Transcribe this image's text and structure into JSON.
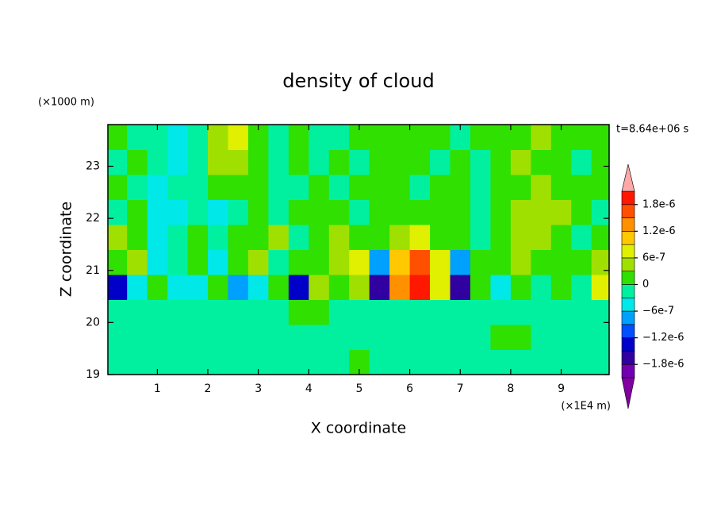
{
  "chart_data": {
    "type": "heatmap",
    "title": "density of cloud",
    "y_unit": "(×1000 m)",
    "time_label": "t=8.64e+06 s",
    "xlabel": "X coordinate",
    "ylabel": "Z coordinate",
    "x_unit": "(×1E4 m)",
    "xlim": [
      0.02,
      9.95
    ],
    "ylim": [
      19,
      23.8
    ],
    "xticks": [
      1,
      2,
      3,
      4,
      5,
      6,
      7,
      8,
      9
    ],
    "yticks": [
      19,
      20,
      21,
      22,
      23
    ],
    "x": [
      0.2,
      0.6,
      1.0,
      1.4,
      1.8,
      2.2,
      2.6,
      3.0,
      3.4,
      3.8,
      4.2,
      4.6,
      5.0,
      5.4,
      5.8,
      6.2,
      6.6,
      7.0,
      7.4,
      7.8,
      8.2,
      8.6,
      9.0,
      9.4,
      9.8
    ],
    "y": [
      19.24,
      19.72,
      20.2,
      20.68,
      21.16,
      21.64,
      22.12,
      22.6,
      23.08,
      23.56
    ],
    "z": [
      [
        -1e-07,
        -1e-07,
        -1e-07,
        -1e-07,
        -1e-07,
        -1e-07,
        -1e-07,
        -1e-07,
        -1e-07,
        -1e-07,
        -1e-07,
        -1e-07,
        1e-07,
        -1e-07,
        -1e-07,
        -1e-07,
        -1e-07,
        -1e-07,
        -1e-07,
        -1e-07,
        -1e-07,
        -1e-07,
        -1e-07,
        -1e-07,
        -1e-07
      ],
      [
        -1e-07,
        -1e-07,
        -1e-07,
        -1e-07,
        -1e-07,
        -1e-07,
        -1e-07,
        -1e-07,
        -1e-07,
        -1e-07,
        -1e-07,
        -1e-07,
        -1e-07,
        -1e-07,
        -1e-07,
        -1e-07,
        -1e-07,
        -1e-07,
        -1e-07,
        1e-07,
        1e-07,
        -1e-07,
        -1e-07,
        -1e-07,
        -1e-07
      ],
      [
        -1e-07,
        -1e-07,
        -1e-07,
        -1e-07,
        -1e-07,
        -1e-07,
        -1e-07,
        -1e-07,
        -1e-07,
        1e-07,
        2e-07,
        -1e-07,
        -1e-07,
        -1e-07,
        -1e-07,
        -1e-07,
        -1e-07,
        -1e-07,
        -1e-07,
        -1e-07,
        -1e-07,
        -1e-07,
        -1e-07,
        -1e-07,
        -1e-07
      ],
      [
        -1.5e-06,
        -4e-07,
        1e-07,
        -4e-07,
        -4e-07,
        1e-07,
        -7e-07,
        -4e-07,
        1e-07,
        -1.3e-06,
        4e-07,
        2e-07,
        4e-07,
        -1.6e-06,
        1.2e-06,
        1.9e-06,
        7e-07,
        -1.6e-06,
        1e-07,
        -4e-07,
        1e-07,
        -1e-07,
        2e-07,
        -1e-07,
        7e-07
      ],
      [
        1e-07,
        4e-07,
        -4e-07,
        -1e-07,
        1e-07,
        -4e-07,
        1e-07,
        4e-07,
        -1e-07,
        1e-07,
        1e-07,
        4e-07,
        7e-07,
        -7e-07,
        1e-06,
        1.6e-06,
        7e-07,
        -7e-07,
        1e-07,
        1e-07,
        4e-07,
        1e-07,
        1e-07,
        1e-07,
        4e-07
      ],
      [
        4e-07,
        1e-07,
        -4e-07,
        -1e-07,
        1e-07,
        -1e-07,
        1e-07,
        1e-07,
        4e-07,
        -1e-07,
        1e-07,
        4e-07,
        1e-07,
        1e-07,
        4e-07,
        7e-07,
        1e-07,
        1e-07,
        -1e-07,
        1e-07,
        4e-07,
        4e-07,
        1e-07,
        -1e-07,
        1e-07
      ],
      [
        -1e-07,
        1e-07,
        -4e-07,
        -4e-07,
        -1e-07,
        -4e-07,
        -1e-07,
        1e-07,
        -1e-07,
        1e-07,
        1e-07,
        1e-07,
        -1e-07,
        1e-07,
        1e-07,
        1e-07,
        1e-07,
        1e-07,
        -1e-07,
        1e-07,
        4e-07,
        4e-07,
        4e-07,
        1e-07,
        -1e-07
      ],
      [
        1e-07,
        -1e-07,
        -4e-07,
        -1e-07,
        -1e-07,
        1e-07,
        1e-07,
        1e-07,
        -1e-07,
        -1e-07,
        1e-07,
        -1e-07,
        1e-07,
        1e-07,
        1e-07,
        -1e-07,
        1e-07,
        1e-07,
        -1e-07,
        1e-07,
        1e-07,
        4e-07,
        1e-07,
        1e-07,
        1e-07
      ],
      [
        -1e-07,
        1e-07,
        -1e-07,
        -4e-07,
        -1e-07,
        4e-07,
        4e-07,
        1e-07,
        -1e-07,
        1e-07,
        -1e-07,
        1e-07,
        -1e-07,
        1e-07,
        1e-07,
        1e-07,
        -1e-07,
        1e-07,
        -1e-07,
        1e-07,
        4e-07,
        1e-07,
        1e-07,
        -1e-07,
        1e-07
      ],
      [
        1e-07,
        -1e-07,
        -1e-07,
        -4e-07,
        -1e-07,
        4e-07,
        7e-07,
        1e-07,
        -1e-07,
        1e-07,
        -1e-07,
        -1e-07,
        1e-07,
        1e-07,
        1e-07,
        1e-07,
        1e-07,
        -1e-07,
        1e-07,
        1e-07,
        1e-07,
        4e-07,
        1e-07,
        1e-07,
        1e-07
      ]
    ],
    "colorbar": {
      "levels": [
        -2.1e-06,
        -1.8e-06,
        -1.5e-06,
        -1.2e-06,
        -9e-07,
        -6e-07,
        -3e-07,
        0,
        3e-07,
        6e-07,
        9e-07,
        1.2e-06,
        1.5e-06,
        1.8e-06,
        2.1e-06
      ],
      "colors": [
        "#7000b0",
        "#3000a0",
        "#0000c8",
        "#0050ff",
        "#00a0ff",
        "#00e8e8",
        "#00f0a0",
        "#30e000",
        "#a0e000",
        "#e0f000",
        "#ffc800",
        "#ff9000",
        "#ff5000",
        "#ff1800"
      ],
      "under_color": "#8000a0",
      "over_color": "#ffa8a8",
      "ticks": [
        {
          "value": 1.8e-06,
          "label": "1.8e-6"
        },
        {
          "value": 1.2e-06,
          "label": "1.2e-6"
        },
        {
          "value": 6e-07,
          "label": "6e-7"
        },
        0,
        {
          "value": -6e-07,
          "label": "−6e-7"
        },
        {
          "value": -1.2e-06,
          "label": "−1.2e-6"
        },
        {
          "value": -1.8e-06,
          "label": "−1.8e-6"
        }
      ]
    }
  }
}
